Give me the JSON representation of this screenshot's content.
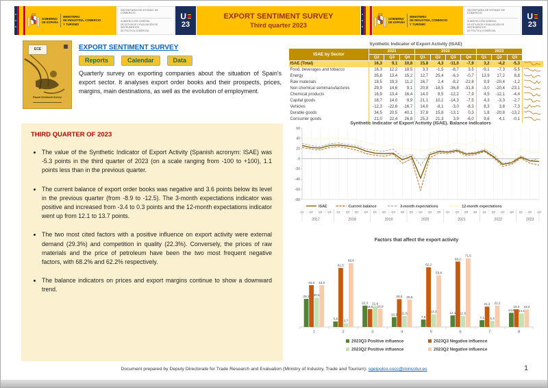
{
  "header": {
    "gobierno_line1": "GOBIERNO",
    "gobierno_line2": "DE ESPAÑA",
    "ministerio_line1": "MINISTERIO",
    "ministerio_line2": "DE INDUSTRIA, COMERCIO",
    "ministerio_line3": "Y TURISMO",
    "secretaria": "SECRETARÍA DE ESTADO DE COMERCIO",
    "subdireccion_line1": "SUBDIRECCIÓN GENERAL",
    "subdireccion_line2": "DE ESTUDIOS Y EVALUACIÓN DE INSTRUMENTOS",
    "subdireccion_line3": "DE POLÍTICA COMERCIAL",
    "eu_logo_u": "U",
    "eu_logo_23": "23",
    "title_line1": "EXPORT SENTIMENT SURVEY",
    "title_line2": "Third quarter 2023",
    "banner_color": "#FFC000",
    "title_color": "#9C3110"
  },
  "intro": {
    "cover_label": "ECE",
    "cover_caption": "Export Sentiment Survey",
    "link_title": "EXPORT SENTIMENT SURVEY",
    "buttons": [
      "Reports",
      "Calendar",
      "Data"
    ],
    "description": "Quarterly survey on exporting companies about the situation of Spain's export sector. It analyses export order books and their prospects, prices, margins, main destinations, as well as the evolution of employment."
  },
  "summary": {
    "heading": "THIRD QUARTER OF 2023",
    "bullets": [
      "The value of the Synthetic Indicator of Export Activity (Spanish acronym: ISAE) was -5.3 points in the third quarter of 2023 (on a scale ranging from -100 to +100), 1.1 points less than in the previous quarter.",
      "The current balance of export order books was negative and 3.6 points below its level in the previous quarter (from -8.9 to -12.5). The 3-month expectations indicator was positive and increased from -3.4 to 0.3 points and the 12-month expectations indicator went up from 12.1 to 13.7 points.",
      "The two most cited factors with a positive influence on export activity were external demand (29.3%) and competition in quality (22.3%). Conversely, the prices of raw materials and the price of petroleum have been the two most frequent negative factors, with 68.2% and 62.2% respectively.",
      "The balance indicators on prices and export margins continue to show a downward trend."
    ]
  },
  "table": {
    "title": "Synthetic Indicator of Export Activity (ISAE)",
    "corner": "ISAE by Sector",
    "header_bg": "#BF8F00",
    "highlight_bg": "#FFD966",
    "year_groups": [
      {
        "year": "2021",
        "quarters": [
          "Q2",
          "Q3",
          "Q4"
        ]
      },
      {
        "year": "2022",
        "quarters": [
          "Q1",
          "Q2",
          "Q3",
          "Q4"
        ]
      },
      {
        "year": "2023",
        "quarters": [
          "Q1",
          "Q2",
          "Q3"
        ]
      }
    ],
    "rows": [
      {
        "label": "ISAE (Total)",
        "highlight": true,
        "values": [
          "16,3",
          "9,1",
          "10,8",
          "15,8",
          "4,3",
          "-11,0",
          "-7,9",
          "3,2",
          "-4,2",
          "-5,3"
        ]
      },
      {
        "label": "Food, beverages and tobacco",
        "highlight": false,
        "values": [
          "16,3",
          "12,2",
          "18,5",
          "3,3",
          "-1,5",
          "-8,7",
          "3,5",
          "-9,1",
          "-7,3",
          "-5,5"
        ]
      },
      {
        "label": "Energy",
        "highlight": false,
        "values": [
          "35,8",
          "13,4",
          "15,2",
          "12,7",
          "25,4",
          "-6,3",
          "-0,7",
          "13,9",
          "17,2",
          "8,8"
        ]
      },
      {
        "label": "Raw materials",
        "highlight": false,
        "values": [
          "18,5",
          "19,3",
          "11,2",
          "16,7",
          "2,4",
          "-8,2",
          "-22,8",
          "9,9",
          "-20,4",
          "-1,2"
        ]
      },
      {
        "label": "Non chemical semimanufactures",
        "highlight": false,
        "values": [
          "29,9",
          "14,6",
          "9,1",
          "20,8",
          "-18,5",
          "-36,8",
          "-31,8",
          "-3,0",
          "-20,4",
          "-23,1"
        ]
      },
      {
        "label": "Chemical products",
        "highlight": false,
        "values": [
          "16,9",
          "13,4",
          "16,4",
          "14,0",
          "8,5",
          "-12,2",
          "-7,9",
          "4,5",
          "-12,1",
          "-4,4"
        ]
      },
      {
        "label": "Capital goods",
        "highlight": false,
        "values": [
          "18,7",
          "14,0",
          "9,9",
          "21,1",
          "10,1",
          "-14,3",
          "-7,5",
          "4,3",
          "-3,3",
          "-2,7"
        ]
      },
      {
        "label": "Vehicles",
        "highlight": false,
        "values": [
          "-12,3",
          "-22,6",
          "-16,7",
          "14,0",
          "-8,1",
          "-3,0",
          "-8,3",
          "8,3",
          "3,8",
          "-7,3"
        ]
      },
      {
        "label": "Durable goods",
        "highlight": false,
        "values": [
          "34,5",
          "20,5",
          "40,1",
          "37,8",
          "15,8",
          "-13,1",
          "0,3",
          "1,8",
          "-20,8",
          "-13,2"
        ]
      },
      {
        "label": "Consumer goods",
        "highlight": false,
        "values": [
          "21,0",
          "22,4",
          "26,8",
          "25,3",
          "21,3",
          "3,9",
          "-6,0",
          "9,6",
          "4,1",
          "-0,1"
        ]
      }
    ]
  },
  "chart_data": [
    {
      "type": "line",
      "title": "Synthetic Indicator of Export Activity (ISAE). Balance indicators",
      "ylim": [
        -80,
        60
      ],
      "yticks": [
        60,
        40,
        20,
        0,
        -20,
        -40,
        -60,
        -80
      ],
      "grid": "vertical-quarters",
      "legend_position": "bottom",
      "years": [
        {
          "year": "2017",
          "n": 4
        },
        {
          "year": "2018",
          "n": 4
        },
        {
          "year": "2019",
          "n": 4
        },
        {
          "year": "2020",
          "n": 4
        },
        {
          "year": "2021",
          "n": 4
        },
        {
          "year": "2022",
          "n": 4
        },
        {
          "year": "2023",
          "n": 3
        }
      ],
      "series": [
        {
          "name": "ISAE",
          "color": "#7F6000",
          "style": "solid",
          "width": 1.4,
          "values": [
            26,
            22,
            21,
            26,
            27,
            25,
            22,
            15,
            11,
            10,
            11,
            -2,
            5,
            -38,
            8,
            14,
            13,
            16.3,
            9.1,
            10.8,
            15.8,
            4.3,
            -11,
            -7.9,
            3.2,
            -4.2,
            -5.3
          ]
        },
        {
          "name": "Current balance",
          "color": "#C55A11",
          "style": "dashed",
          "width": 0.9,
          "values": [
            22,
            19,
            17,
            22,
            24,
            21,
            17,
            10,
            7,
            5,
            9,
            -9,
            0,
            -62,
            2,
            11,
            10,
            14,
            6,
            8,
            14,
            2,
            -15,
            -11,
            1,
            -8.9,
            -12.5
          ]
        },
        {
          "name": "3-month expectations",
          "color": "#A6A6A6",
          "style": "dashed",
          "width": 0.9,
          "values": [
            30,
            26,
            24,
            29,
            31,
            28,
            26,
            19,
            16,
            15,
            19,
            3,
            9,
            -13,
            12,
            16,
            15,
            19,
            11,
            13,
            19,
            9,
            -9,
            -6,
            6,
            -3.4,
            0.3
          ]
        },
        {
          "name": "12-month expectations",
          "color": "#FFE699",
          "style": "dotted",
          "width": 1.1,
          "values": [
            38,
            40,
            38,
            40,
            40,
            39,
            36,
            32,
            27,
            25,
            26,
            19,
            21,
            15,
            19,
            23,
            26,
            31,
            28,
            35,
            28,
            27,
            12,
            -8,
            20,
            12.1,
            13.7
          ]
        }
      ]
    },
    {
      "type": "bar",
      "title": "Factors that affect the export activity",
      "categories": [
        "1",
        "2",
        "3",
        "4",
        "5",
        "6",
        "7",
        "8"
      ],
      "ylim": [
        0,
        80
      ],
      "value_labels": true,
      "legend_position": "bottom",
      "series": [
        {
          "name": "2023Q3 Positive influence",
          "color": "#548235",
          "values": [
            29.3,
            5.8,
            22.3,
            10.3,
            7.8,
            12.1,
            7.1,
            14.8
          ]
        },
        {
          "name": "2023Q3 Negative influence",
          "color": "#C55A11",
          "values": [
            43.6,
            61.5,
            18.6,
            29.0,
            62.2,
            68.2,
            21.2,
            18.4
          ]
        },
        {
          "name": "2023Q2 Positive influence",
          "color": "#C6E0B4",
          "values": [
            30.5,
            3.7,
            21.8,
            11.5,
            13.3,
            11.5,
            6.3,
            14.1
          ]
        },
        {
          "name": "2023Q2 Negative influence",
          "color": "#F8CBAD",
          "values": [
            43.6,
            66.6,
            18.9,
            28.5,
            53.8,
            71.5,
            22.2,
            18.3
          ]
        }
      ]
    }
  ],
  "footer": {
    "text": "Document prepared by Deputy Directorate for Trade Research and Evaluation (Ministry of Industry, Trade and Tourism): ",
    "email": "sgeipolco.sscc@mincotur.es",
    "page": "1"
  }
}
